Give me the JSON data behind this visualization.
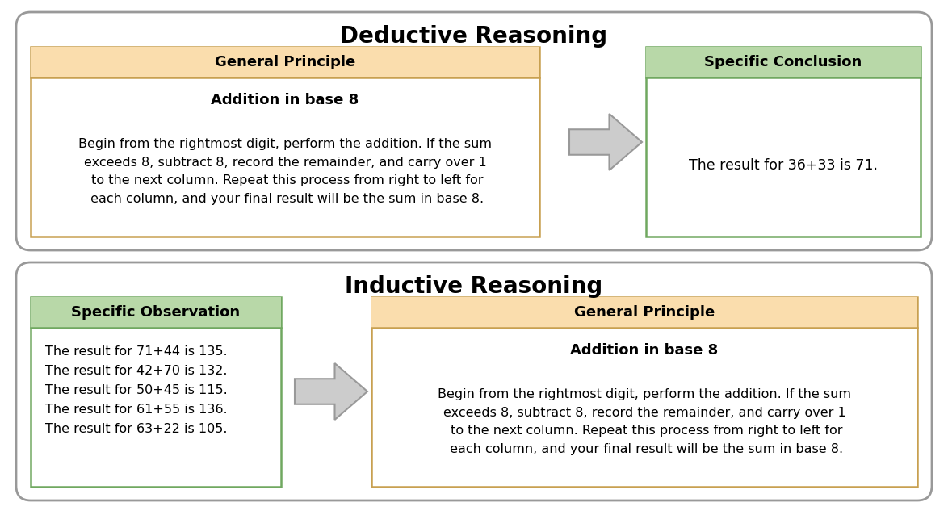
{
  "bg_color": "#ffffff",
  "outer_bg": "#ffffff",
  "outer_border_color": "#999999",
  "deductive_title": "Deductive Reasoning",
  "inductive_title": "Inductive Reasoning",
  "orange_header_color": "#FADDAD",
  "orange_border_color": "#C8A050",
  "green_header_color": "#B8D8A8",
  "green_border_color": "#70A860",
  "gp_header": "General Principle",
  "sc_header": "Specific Conclusion",
  "so_header": "Specific Observation",
  "addition_subtitle": "Addition in base 8",
  "addition_body_lines": [
    "Begin from the rightmost digit, perform the addition. If the sum",
    "exceeds 8, subtract 8, record the remainder, and carry over 1",
    " to the next column. Repeat this process from right to left for",
    " each column, and your final result will be the sum in base 8."
  ],
  "deductive_conclusion": "The result for 36+33 is 71.",
  "inductive_observations": [
    "The result for 71+44 is 135.",
    "The result for 42+70 is 132.",
    "The result for 50+45 is 115.",
    "The result for 61+55 is 136.",
    "The result for 63+22 is 105."
  ],
  "arrow_face_color": "#CCCCCC",
  "arrow_edge_color": "#999999",
  "title_fontsize": 20,
  "header_fontsize": 13,
  "body_fontsize": 11.5,
  "subtitle_fontsize": 13
}
